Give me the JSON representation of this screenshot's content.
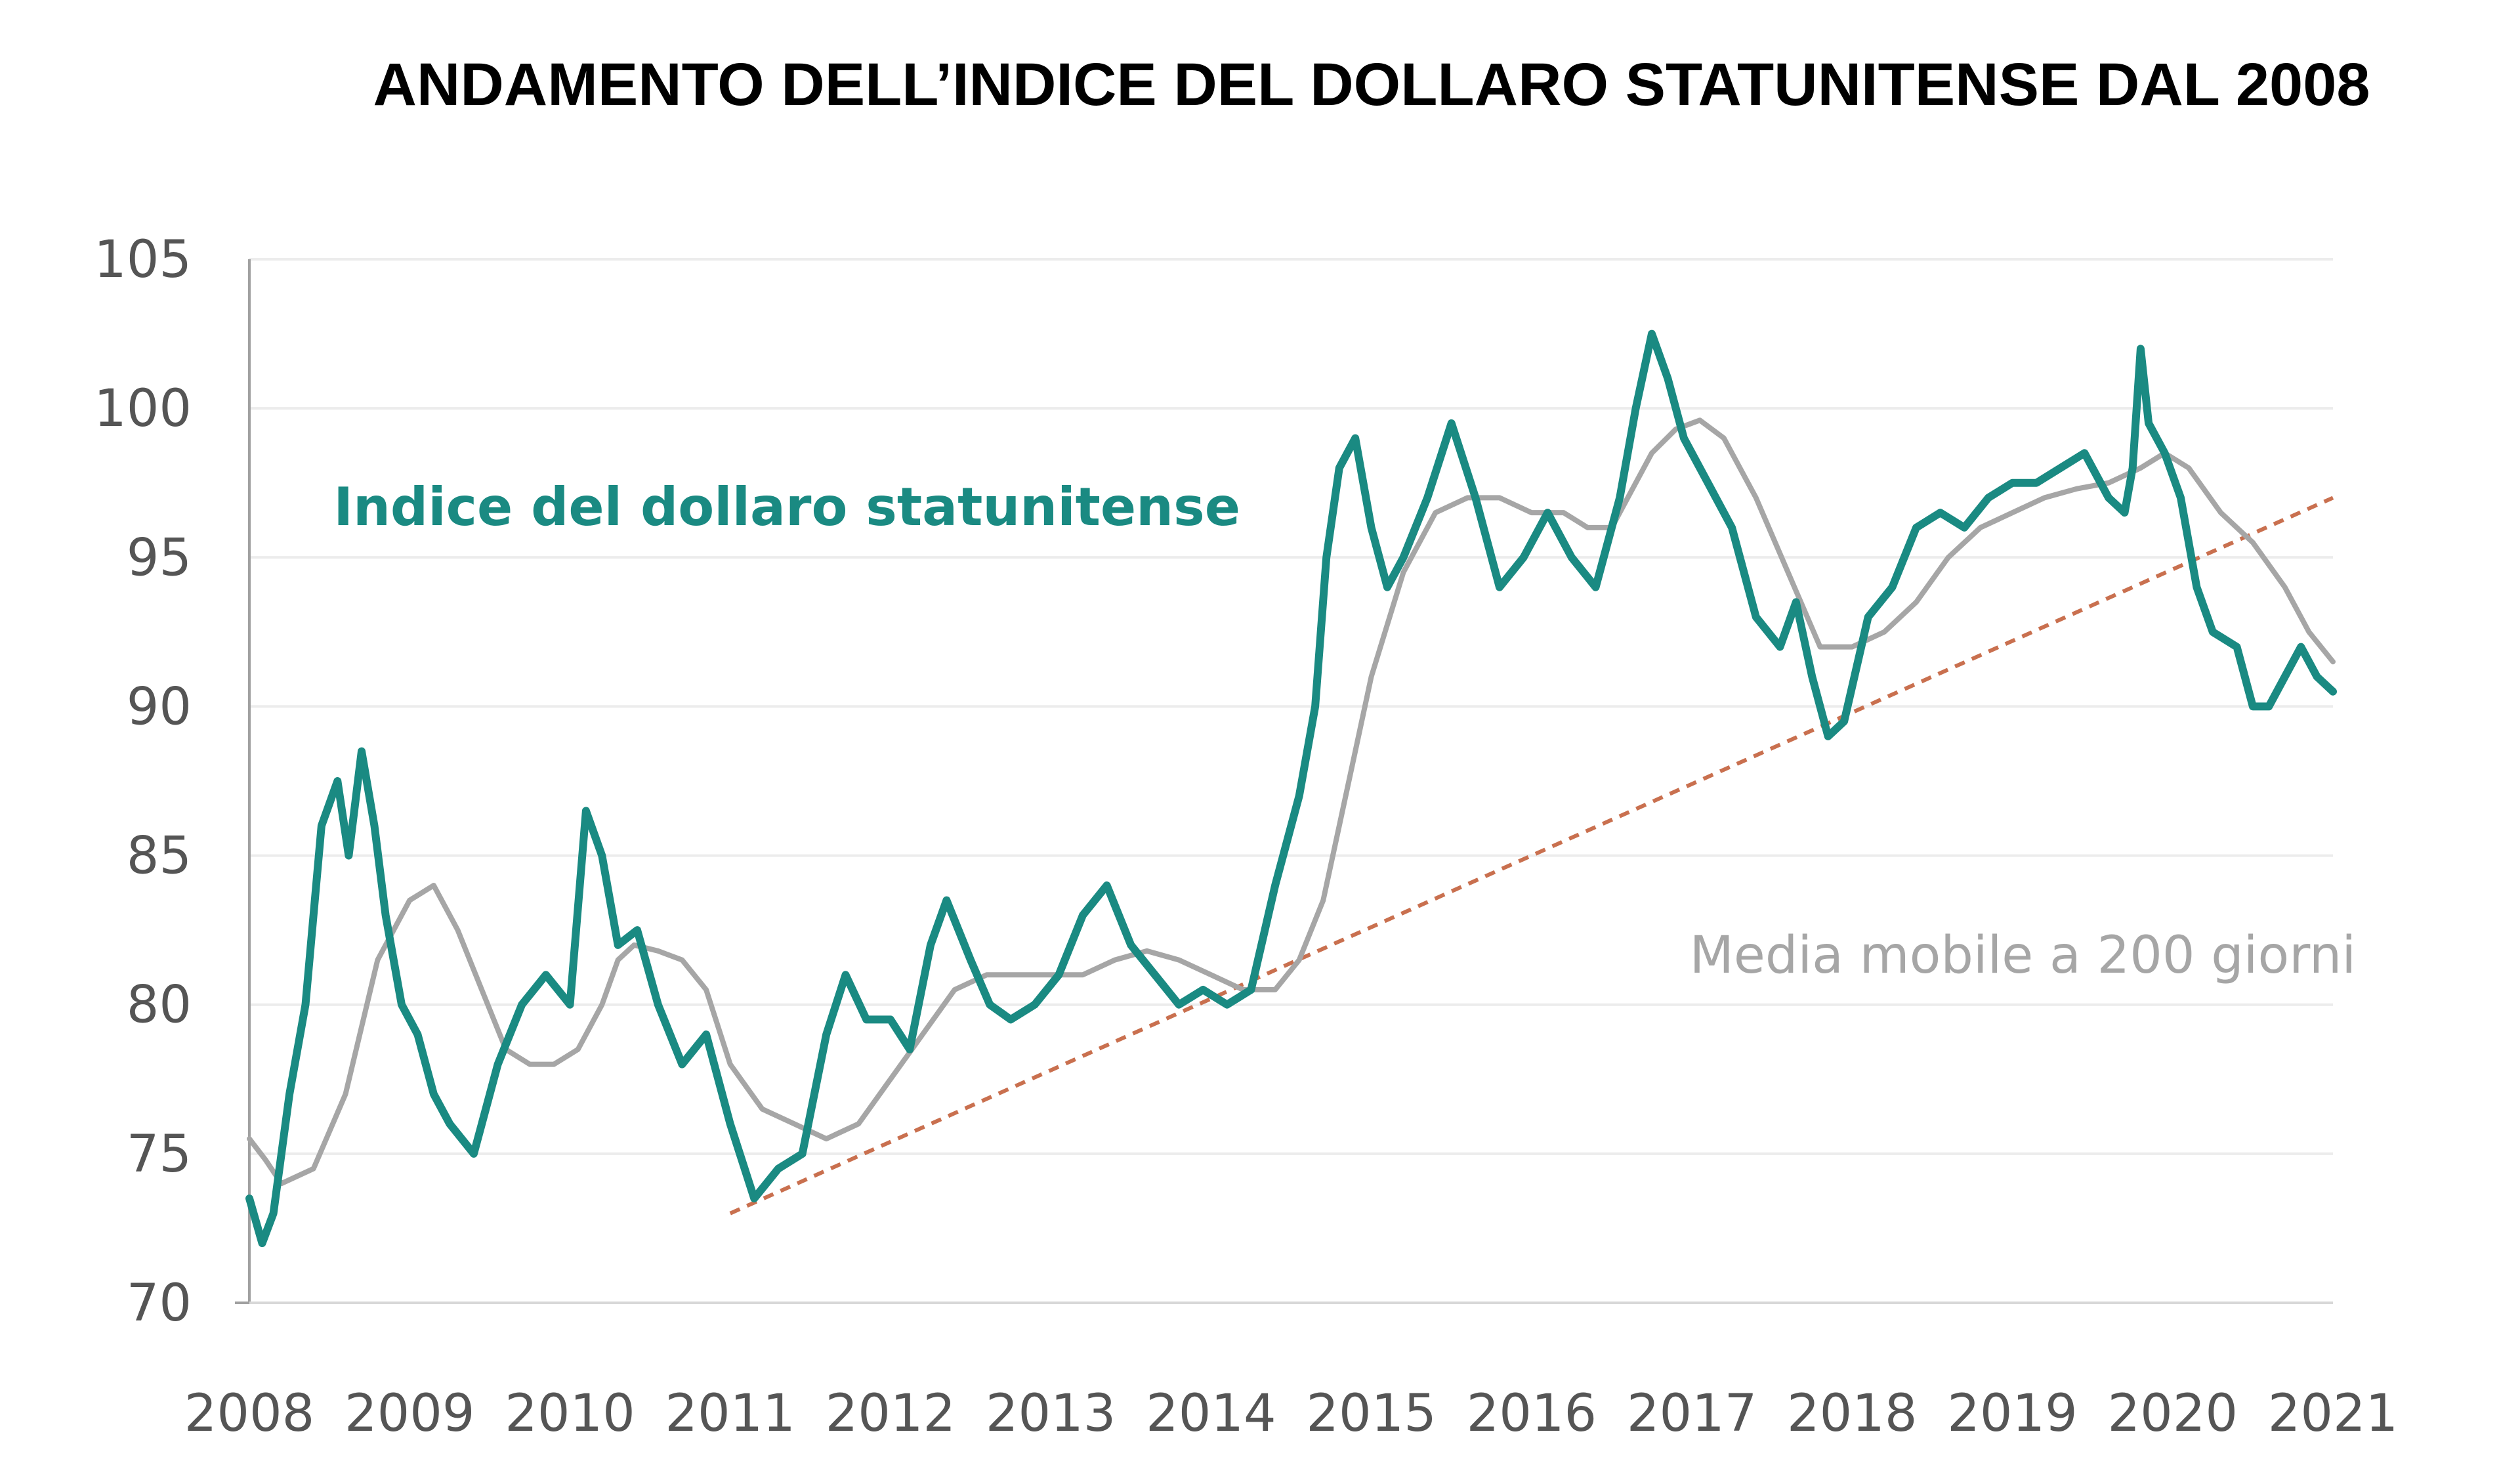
{
  "chart_data": {
    "type": "line",
    "title": "ANDAMENTO DELL’INDICE DEL DOLLARO STATUNITENSE DAL 2008",
    "xlabel": "",
    "ylabel": "",
    "xlim": [
      2008,
      2021
    ],
    "ylim": [
      70,
      105
    ],
    "x_ticks": [
      "2008",
      "2009",
      "2010",
      "2011",
      "2012",
      "2013",
      "2014",
      "2015",
      "2016",
      "2017",
      "2018",
      "2019",
      "2020",
      "2021"
    ],
    "y_ticks": [
      "105",
      "100",
      "95",
      "90",
      "85",
      "80",
      "75",
      "70"
    ],
    "grid": "horizontal",
    "colors": {
      "index": "#1a8a82",
      "moving_average": "#a6a6a6",
      "trend": "#c9704f"
    },
    "series": [
      {
        "name": "Indice del dollaro statunitense",
        "x": [
          2008.0,
          2008.08,
          2008.15,
          2008.25,
          2008.35,
          2008.45,
          2008.55,
          2008.62,
          2008.7,
          2008.78,
          2008.85,
          2008.95,
          2009.05,
          2009.15,
          2009.25,
          2009.4,
          2009.55,
          2009.7,
          2009.85,
          2010.0,
          2010.1,
          2010.2,
          2010.3,
          2010.42,
          2010.55,
          2010.7,
          2010.85,
          2011.0,
          2011.15,
          2011.3,
          2011.45,
          2011.6,
          2011.72,
          2011.85,
          2012.0,
          2012.12,
          2012.25,
          2012.35,
          2012.5,
          2012.62,
          2012.75,
          2012.9,
          2013.05,
          2013.2,
          2013.35,
          2013.5,
          2013.65,
          2013.8,
          2013.95,
          2014.1,
          2014.25,
          2014.4,
          2014.55,
          2014.65,
          2014.72,
          2014.8,
          2014.9,
          2015.0,
          2015.1,
          2015.2,
          2015.35,
          2015.5,
          2015.65,
          2015.8,
          2015.95,
          2016.1,
          2016.25,
          2016.4,
          2016.55,
          2016.65,
          2016.75,
          2016.85,
          2016.95,
          2017.1,
          2017.25,
          2017.4,
          2017.55,
          2017.65,
          2017.75,
          2017.85,
          2017.95,
          2018.1,
          2018.25,
          2018.4,
          2018.55,
          2018.7,
          2018.85,
          2019.0,
          2019.15,
          2019.3,
          2019.45,
          2019.6,
          2019.7,
          2019.75,
          2019.8,
          2019.85,
          2019.95,
          2020.05,
          2020.15,
          2020.25,
          2020.4,
          2020.5,
          2020.6,
          2020.7,
          2020.8,
          2020.9,
          2021.0
        ],
        "y": [
          73.5,
          72.0,
          73.0,
          77.0,
          80.0,
          86.0,
          87.5,
          85.0,
          88.5,
          86.0,
          83.0,
          80.0,
          79.0,
          77.0,
          76.0,
          75.0,
          78.0,
          80.0,
          81.0,
          80.0,
          86.5,
          85.0,
          82.0,
          82.5,
          80.0,
          78.0,
          79.0,
          76.0,
          73.5,
          74.5,
          75.0,
          79.0,
          81.0,
          79.5,
          79.5,
          78.5,
          82.0,
          83.5,
          81.5,
          80.0,
          79.5,
          80.0,
          81.0,
          83.0,
          84.0,
          82.0,
          81.0,
          80.0,
          80.5,
          80.0,
          80.5,
          84.0,
          87.0,
          90.0,
          95.0,
          98.0,
          99.0,
          96.0,
          94.0,
          95.0,
          97.0,
          99.5,
          97.0,
          94.0,
          95.0,
          96.5,
          95.0,
          94.0,
          97.0,
          100.0,
          102.5,
          101.0,
          99.0,
          97.5,
          96.0,
          93.0,
          92.0,
          93.5,
          91.0,
          89.0,
          89.5,
          93.0,
          94.0,
          96.0,
          96.5,
          96.0,
          97.0,
          97.5,
          97.5,
          98.0,
          98.5,
          97.0,
          96.5,
          98.0,
          102.0,
          99.5,
          98.5,
          97.0,
          94.0,
          92.5,
          92.0,
          90.0,
          90.0,
          91.0,
          92.0,
          91.0,
          90.5
        ]
      },
      {
        "name": "Media mobile a 200 giorni",
        "x": [
          2008.0,
          2008.1,
          2008.2,
          2008.4,
          2008.6,
          2008.8,
          2009.0,
          2009.15,
          2009.3,
          2009.45,
          2009.6,
          2009.75,
          2009.9,
          2010.05,
          2010.2,
          2010.3,
          2010.4,
          2010.55,
          2010.7,
          2010.85,
          2011.0,
          2011.2,
          2011.4,
          2011.6,
          2011.8,
          2012.0,
          2012.2,
          2012.4,
          2012.6,
          2012.8,
          2013.0,
          2013.2,
          2013.4,
          2013.6,
          2013.8,
          2014.0,
          2014.2,
          2014.4,
          2014.55,
          2014.7,
          2014.8,
          2014.9,
          2015.0,
          2015.2,
          2015.4,
          2015.6,
          2015.8,
          2016.0,
          2016.2,
          2016.35,
          2016.5,
          2016.6,
          2016.75,
          2016.9,
          2017.05,
          2017.2,
          2017.4,
          2017.6,
          2017.8,
          2018.0,
          2018.2,
          2018.4,
          2018.6,
          2018.8,
          2019.0,
          2019.2,
          2019.4,
          2019.6,
          2019.8,
          2019.95,
          2020.1,
          2020.3,
          2020.5,
          2020.7,
          2020.85,
          2021.0
        ],
        "y": [
          75.5,
          74.8,
          74.0,
          74.5,
          77.0,
          81.5,
          83.5,
          84.0,
          82.5,
          80.5,
          78.5,
          78.0,
          78.0,
          78.5,
          80.0,
          81.5,
          82.0,
          81.8,
          81.5,
          80.5,
          78.0,
          76.5,
          76.0,
          75.5,
          76.0,
          77.5,
          79.0,
          80.5,
          81.0,
          81.0,
          81.0,
          81.0,
          81.5,
          81.8,
          81.5,
          81.0,
          80.5,
          80.5,
          81.5,
          83.5,
          86.0,
          88.5,
          91.0,
          94.5,
          96.5,
          97.0,
          97.0,
          96.5,
          96.5,
          96.0,
          96.0,
          97.0,
          98.5,
          99.3,
          99.6,
          99.0,
          97.0,
          94.5,
          92.0,
          92.0,
          92.5,
          93.5,
          95.0,
          96.0,
          96.5,
          97.0,
          97.3,
          97.5,
          98.0,
          98.5,
          98.0,
          96.5,
          95.5,
          94.0,
          92.5,
          91.5
        ]
      }
    ],
    "trendline": {
      "x": [
        2011.0,
        2021.0
      ],
      "y": [
        73.0,
        97.0
      ]
    },
    "annotations": [
      {
        "text": "Indice del dollaro statunitense",
        "series": 0
      },
      {
        "text": "Media mobile a 200 giorni",
        "series": 1
      }
    ]
  }
}
